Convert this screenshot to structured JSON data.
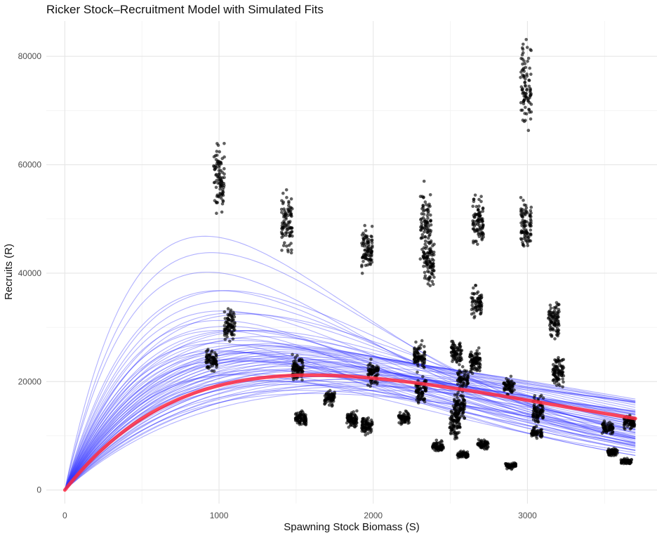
{
  "chart_data": {
    "type": "scatter",
    "title": "Ricker Stock–Recruitment Model with Simulated Fits",
    "xlabel": "Spawning Stock Biomass (S)",
    "ylabel": "Recruits (R)",
    "xlim": [
      -120,
      3840
    ],
    "ylim": [
      -2500,
      86500
    ],
    "x_ticks": [
      0,
      1000,
      2000,
      3000
    ],
    "x_tick_labels": [
      "0",
      "1000",
      "2000",
      "3000"
    ],
    "y_ticks": [
      0,
      20000,
      40000,
      60000,
      80000
    ],
    "y_tick_labels": [
      "0",
      "20000",
      "40000",
      "60000",
      "80000"
    ],
    "grid": true,
    "legend": "none",
    "colors": {
      "simulated_fits": "#3333ff",
      "fitted_curve": "#ff2a40",
      "points": "#000000"
    },
    "fitted_curve": {
      "a": 36,
      "b": 0.000625,
      "s_max": 3700
    },
    "simulated_fits": [
      {
        "a": 140,
        "b": 0.0011
      },
      {
        "a": 125,
        "b": 0.00105
      },
      {
        "a": 118,
        "b": 0.00108
      },
      {
        "a": 100,
        "b": 0.001
      },
      {
        "a": 95,
        "b": 0.00095
      },
      {
        "a": 90,
        "b": 0.00095
      },
      {
        "a": 88,
        "b": 0.00098
      },
      {
        "a": 85,
        "b": 0.001
      },
      {
        "a": 80,
        "b": 0.0009
      },
      {
        "a": 78,
        "b": 0.00095
      },
      {
        "a": 75,
        "b": 0.00085
      },
      {
        "a": 72,
        "b": 0.0009
      },
      {
        "a": 70,
        "b": 0.00092
      },
      {
        "a": 68,
        "b": 0.00085
      },
      {
        "a": 66,
        "b": 0.00088
      },
      {
        "a": 64,
        "b": 0.0008
      },
      {
        "a": 62,
        "b": 0.00085
      },
      {
        "a": 60,
        "b": 0.00078
      },
      {
        "a": 58,
        "b": 0.0008
      },
      {
        "a": 57,
        "b": 0.00083
      },
      {
        "a": 55,
        "b": 0.00075
      },
      {
        "a": 54,
        "b": 0.00078
      },
      {
        "a": 52,
        "b": 0.00072
      },
      {
        "a": 51,
        "b": 0.00076
      },
      {
        "a": 50,
        "b": 0.0007
      },
      {
        "a": 49,
        "b": 0.00074
      },
      {
        "a": 48,
        "b": 0.00068
      },
      {
        "a": 47,
        "b": 0.00072
      },
      {
        "a": 46,
        "b": 0.00066
      },
      {
        "a": 45,
        "b": 0.0007
      },
      {
        "a": 44,
        "b": 0.00064
      },
      {
        "a": 43,
        "b": 0.00068
      },
      {
        "a": 42,
        "b": 0.00062
      },
      {
        "a": 41,
        "b": 0.00066
      },
      {
        "a": 40,
        "b": 0.0006
      },
      {
        "a": 39,
        "b": 0.00064
      },
      {
        "a": 38,
        "b": 0.00058
      },
      {
        "a": 37,
        "b": 0.00062
      },
      {
        "a": 36,
        "b": 0.00056
      },
      {
        "a": 35,
        "b": 0.0006
      },
      {
        "a": 34,
        "b": 0.00055
      },
      {
        "a": 33,
        "b": 0.00058
      },
      {
        "a": 32,
        "b": 0.00054
      },
      {
        "a": 31,
        "b": 0.00056
      },
      {
        "a": 30,
        "b": 0.00052
      },
      {
        "a": 29,
        "b": 0.00055
      },
      {
        "a": 28,
        "b": 0.0005
      },
      {
        "a": 27,
        "b": 0.00052
      },
      {
        "a": 26,
        "b": 0.00048
      },
      {
        "a": 25,
        "b": 0.0005
      },
      {
        "a": 44,
        "b": 0.0008
      },
      {
        "a": 52,
        "b": 0.0009
      },
      {
        "a": 60,
        "b": 0.00092
      },
      {
        "a": 66,
        "b": 0.00095
      },
      {
        "a": 58,
        "b": 0.00088
      },
      {
        "a": 49,
        "b": 0.00084
      },
      {
        "a": 41,
        "b": 0.00075
      },
      {
        "a": 37,
        "b": 0.0007
      },
      {
        "a": 33,
        "b": 0.00066
      },
      {
        "a": 30,
        "b": 0.00062
      },
      {
        "a": 70,
        "b": 0.001
      },
      {
        "a": 75,
        "b": 0.00102
      },
      {
        "a": 80,
        "b": 0.001
      },
      {
        "a": 55,
        "b": 0.00085
      },
      {
        "a": 47,
        "b": 0.00078
      },
      {
        "a": 43,
        "b": 0.00072
      },
      {
        "a": 39,
        "b": 0.00068
      },
      {
        "a": 35,
        "b": 0.00064
      },
      {
        "a": 62,
        "b": 0.0009
      },
      {
        "a": 53,
        "b": 0.00082
      }
    ],
    "point_clusters": [
      {
        "x": 1000,
        "y_center": 57500,
        "y_spread": 2800,
        "n": 90
      },
      {
        "x": 1440,
        "y_center": 49500,
        "y_spread": 2500,
        "n": 90
      },
      {
        "x": 1960,
        "y_center": 44500,
        "y_spread": 2000,
        "n": 90
      },
      {
        "x": 2340,
        "y_center": 49000,
        "y_spread": 3000,
        "n": 90
      },
      {
        "x": 2360,
        "y_center": 42000,
        "y_spread": 2000,
        "n": 90
      },
      {
        "x": 2680,
        "y_center": 49000,
        "y_spread": 2200,
        "n": 90
      },
      {
        "x": 2670,
        "y_center": 34500,
        "y_spread": 1300,
        "n": 70
      },
      {
        "x": 2990,
        "y_center": 74500,
        "y_spread": 3500,
        "n": 90
      },
      {
        "x": 2990,
        "y_center": 49000,
        "y_spread": 2000,
        "n": 90
      },
      {
        "x": 1070,
        "y_center": 30500,
        "y_spread": 1300,
        "n": 80
      },
      {
        "x": 3170,
        "y_center": 31500,
        "y_spread": 1800,
        "n": 90
      },
      {
        "x": 950,
        "y_center": 24000,
        "y_spread": 1000,
        "n": 70
      },
      {
        "x": 1510,
        "y_center": 22500,
        "y_spread": 1100,
        "n": 90
      },
      {
        "x": 2000,
        "y_center": 21500,
        "y_spread": 900,
        "n": 80
      },
      {
        "x": 2300,
        "y_center": 24500,
        "y_spread": 1100,
        "n": 80
      },
      {
        "x": 2310,
        "y_center": 18500,
        "y_spread": 1000,
        "n": 80
      },
      {
        "x": 2540,
        "y_center": 25500,
        "y_spread": 1000,
        "n": 80
      },
      {
        "x": 2660,
        "y_center": 23500,
        "y_spread": 1100,
        "n": 90
      },
      {
        "x": 2580,
        "y_center": 20500,
        "y_spread": 800,
        "n": 60
      },
      {
        "x": 2880,
        "y_center": 19000,
        "y_spread": 700,
        "n": 60
      },
      {
        "x": 3200,
        "y_center": 22000,
        "y_spread": 1200,
        "n": 90
      },
      {
        "x": 1530,
        "y_center": 13200,
        "y_spread": 700,
        "n": 80
      },
      {
        "x": 1720,
        "y_center": 17000,
        "y_spread": 600,
        "n": 70
      },
      {
        "x": 1860,
        "y_center": 13000,
        "y_spread": 700,
        "n": 80
      },
      {
        "x": 1960,
        "y_center": 12000,
        "y_spread": 700,
        "n": 80
      },
      {
        "x": 2200,
        "y_center": 13200,
        "y_spread": 500,
        "n": 70
      },
      {
        "x": 2560,
        "y_center": 15500,
        "y_spread": 1300,
        "n": 90
      },
      {
        "x": 2530,
        "y_center": 12500,
        "y_spread": 1400,
        "n": 90
      },
      {
        "x": 3070,
        "y_center": 14500,
        "y_spread": 1300,
        "n": 90
      },
      {
        "x": 3060,
        "y_center": 10500,
        "y_spread": 500,
        "n": 60
      },
      {
        "x": 3520,
        "y_center": 11500,
        "y_spread": 500,
        "n": 70
      },
      {
        "x": 3660,
        "y_center": 12500,
        "y_spread": 600,
        "n": 70
      },
      {
        "x": 2420,
        "y_center": 8000,
        "y_spread": 400,
        "n": 70
      },
      {
        "x": 2580,
        "y_center": 6500,
        "y_spread": 300,
        "n": 60
      },
      {
        "x": 2710,
        "y_center": 8500,
        "y_spread": 400,
        "n": 60
      },
      {
        "x": 2890,
        "y_center": 4500,
        "y_spread": 250,
        "n": 60
      },
      {
        "x": 3550,
        "y_center": 7000,
        "y_spread": 300,
        "n": 60
      },
      {
        "x": 3640,
        "y_center": 5300,
        "y_spread": 250,
        "n": 60
      }
    ]
  }
}
